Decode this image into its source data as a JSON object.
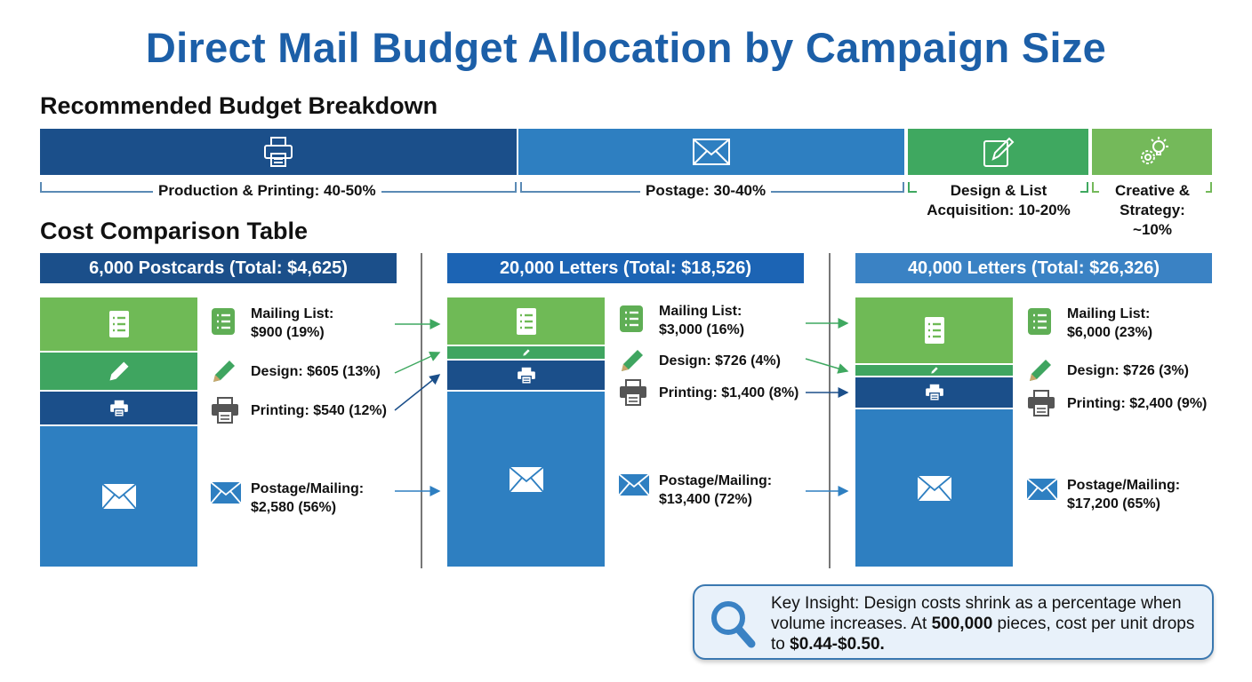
{
  "title": "Direct Mail Budget Allocation by Campaign Size",
  "breakdown": {
    "heading": "Recommended Budget Breakdown",
    "segments": [
      {
        "label": "Production & Printing: 40-50%",
        "icon": "printer-icon",
        "color": "#1b4f8a"
      },
      {
        "label": "Postage: 30-40%",
        "icon": "envelope-icon",
        "color": "#2e7fc1"
      },
      {
        "label_line1": "Design & List",
        "label_line2": "Acquisition: 10-20%",
        "icon": "pencil-edit-icon",
        "color": "#3fa860"
      },
      {
        "label_line1": "Creative &",
        "label_line2": "Strategy: ~10%",
        "icon": "gear-lightbulb-icon",
        "color": "#74b95a"
      }
    ]
  },
  "table": {
    "heading": "Cost Comparison Table",
    "columns": [
      {
        "header": "6,000 Postcards (Total: $4,625)",
        "header_color": "#1b4f8a",
        "items": [
          {
            "l1": "Mailing List:",
            "l2": "$900 (19%)",
            "pct": 19
          },
          {
            "l1": "Design: $605 (13%)",
            "pct": 13
          },
          {
            "l1": "Printing: $540 (12%)",
            "pct": 12
          },
          {
            "l1": "Postage/Mailing:",
            "l2": "$2,580 (56%)",
            "pct": 56
          }
        ]
      },
      {
        "header": "20,000 Letters (Total: $18,526)",
        "header_color": "#1c64b4",
        "items": [
          {
            "l1": "Mailing List:",
            "l2": "$3,000 (16%)",
            "pct": 16
          },
          {
            "l1": "Design: $726 (4%)",
            "pct": 4
          },
          {
            "l1": "Printing: $1,400 (8%)",
            "pct": 8
          },
          {
            "l1": "Postage/Mailing:",
            "l2": "$13,400 (72%)",
            "pct": 72
          }
        ]
      },
      {
        "header": "40,000 Letters (Total: $26,326)",
        "header_color": "#3a82c4",
        "items": [
          {
            "l1": "Mailing List:",
            "l2": "$6,000 (23%)",
            "pct": 23
          },
          {
            "l1": "Design: $726 (3%)",
            "pct": 3
          },
          {
            "l1": "Printing: $2,400 (9%)",
            "pct": 9
          },
          {
            "l1": "Postage/Mailing:",
            "l2": "$17,200 (65%)",
            "pct": 65
          }
        ]
      }
    ]
  },
  "insight": {
    "icon": "magnifier-icon",
    "t1": "Key Insight: Design costs shrink as a percentage when volume increases. At ",
    "b1": "500,000",
    "t2": " pieces, cost per unit drops to ",
    "b2": "$0.44-$0.50."
  },
  "colors": {
    "list": "#6fba56",
    "design": "#3fa560",
    "printing": "#1b4f8a",
    "postage": "#2e7fc1"
  }
}
